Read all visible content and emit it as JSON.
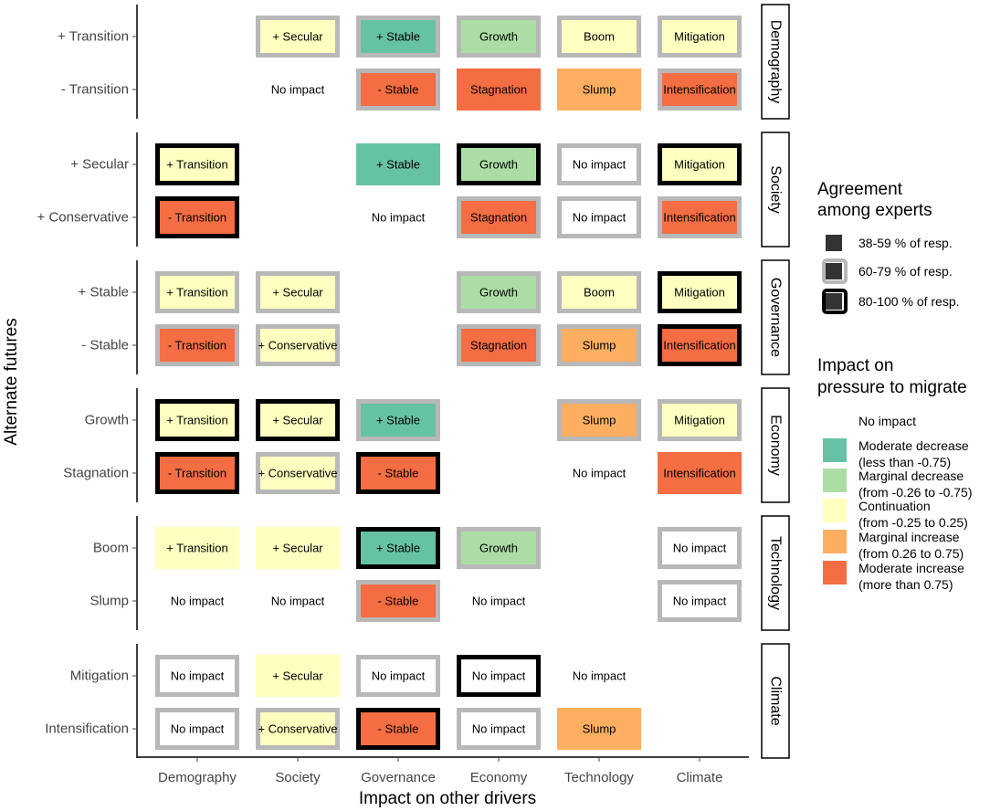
{
  "chart_data": {
    "type": "heatmap",
    "xlabel": "Impact on other drivers",
    "ylabel": "Alternate futures",
    "columns": [
      "Demography",
      "Society",
      "Governance",
      "Economy",
      "Technology",
      "Climate"
    ],
    "panels": [
      {
        "name": "Demography",
        "rows": [
          "+ Transition",
          "- Transition"
        ],
        "cells": [
          [
            null,
            {
              "text": "+ Secular",
              "impact": "continuation",
              "agreement": "60-79"
            },
            {
              "text": "+ Stable",
              "impact": "moderate_decrease",
              "agreement": "60-79"
            },
            {
              "text": "Growth",
              "impact": "marginal_decrease",
              "agreement": "60-79"
            },
            {
              "text": "Boom",
              "impact": "continuation",
              "agreement": "60-79"
            },
            {
              "text": "Mitigation",
              "impact": "continuation",
              "agreement": "60-79"
            }
          ],
          [
            null,
            {
              "text": "No impact",
              "impact": "no_impact",
              "agreement": "38-59"
            },
            {
              "text": "- Stable",
              "impact": "moderate_increase",
              "agreement": "60-79"
            },
            {
              "text": "Stagnation",
              "impact": "moderate_increase",
              "agreement": "38-59"
            },
            {
              "text": "Slump",
              "impact": "marginal_increase",
              "agreement": "38-59"
            },
            {
              "text": "Intensification",
              "impact": "moderate_increase",
              "agreement": "60-79"
            }
          ]
        ]
      },
      {
        "name": "Society",
        "rows": [
          "+ Secular",
          "+ Conservative"
        ],
        "cells": [
          [
            {
              "text": "+ Transition",
              "impact": "continuation",
              "agreement": "80-100"
            },
            null,
            {
              "text": "+ Stable",
              "impact": "moderate_decrease",
              "agreement": "38-59"
            },
            {
              "text": "Growth",
              "impact": "marginal_decrease",
              "agreement": "80-100"
            },
            {
              "text": "No impact",
              "impact": "no_impact",
              "agreement": "60-79"
            },
            {
              "text": "Mitigation",
              "impact": "continuation",
              "agreement": "80-100"
            }
          ],
          [
            {
              "text": "- Transition",
              "impact": "moderate_increase",
              "agreement": "80-100"
            },
            null,
            {
              "text": "No impact",
              "impact": "no_impact",
              "agreement": "38-59"
            },
            {
              "text": "Stagnation",
              "impact": "moderate_increase",
              "agreement": "60-79"
            },
            {
              "text": "No impact",
              "impact": "no_impact",
              "agreement": "60-79"
            },
            {
              "text": "Intensification",
              "impact": "moderate_increase",
              "agreement": "60-79"
            }
          ]
        ]
      },
      {
        "name": "Governance",
        "rows": [
          "+ Stable",
          "- Stable"
        ],
        "cells": [
          [
            {
              "text": "+ Transition",
              "impact": "continuation",
              "agreement": "60-79"
            },
            {
              "text": "+ Secular",
              "impact": "continuation",
              "agreement": "60-79"
            },
            null,
            {
              "text": "Growth",
              "impact": "marginal_decrease",
              "agreement": "60-79"
            },
            {
              "text": "Boom",
              "impact": "continuation",
              "agreement": "60-79"
            },
            {
              "text": "Mitigation",
              "impact": "continuation",
              "agreement": "80-100"
            }
          ],
          [
            {
              "text": "- Transition",
              "impact": "moderate_increase",
              "agreement": "60-79"
            },
            {
              "text": "+ Conservative",
              "impact": "continuation",
              "agreement": "60-79"
            },
            null,
            {
              "text": "Stagnation",
              "impact": "moderate_increase",
              "agreement": "60-79"
            },
            {
              "text": "Slump",
              "impact": "marginal_increase",
              "agreement": "60-79"
            },
            {
              "text": "Intensification",
              "impact": "moderate_increase",
              "agreement": "80-100"
            }
          ]
        ]
      },
      {
        "name": "Economy",
        "rows": [
          "Growth",
          "Stagnation"
        ],
        "cells": [
          [
            {
              "text": "+ Transition",
              "impact": "continuation",
              "agreement": "80-100"
            },
            {
              "text": "+ Secular",
              "impact": "continuation",
              "agreement": "80-100"
            },
            {
              "text": "+ Stable",
              "impact": "moderate_decrease",
              "agreement": "60-79"
            },
            null,
            {
              "text": "Slump",
              "impact": "marginal_increase",
              "agreement": "60-79"
            },
            {
              "text": "Mitigation",
              "impact": "continuation",
              "agreement": "60-79"
            }
          ],
          [
            {
              "text": "- Transition",
              "impact": "moderate_increase",
              "agreement": "80-100"
            },
            {
              "text": "+ Conservative",
              "impact": "continuation",
              "agreement": "60-79"
            },
            {
              "text": "- Stable",
              "impact": "moderate_increase",
              "agreement": "80-100"
            },
            null,
            {
              "text": "No impact",
              "impact": "no_impact",
              "agreement": "38-59"
            },
            {
              "text": "Intensification",
              "impact": "moderate_increase",
              "agreement": "38-59"
            }
          ]
        ]
      },
      {
        "name": "Technology",
        "rows": [
          "Boom",
          "Slump"
        ],
        "cells": [
          [
            {
              "text": "+ Transition",
              "impact": "continuation",
              "agreement": "38-59"
            },
            {
              "text": "+ Secular",
              "impact": "continuation",
              "agreement": "38-59"
            },
            {
              "text": "+ Stable",
              "impact": "moderate_decrease",
              "agreement": "80-100"
            },
            {
              "text": "Growth",
              "impact": "marginal_decrease",
              "agreement": "60-79"
            },
            null,
            {
              "text": "No impact",
              "impact": "no_impact",
              "agreement": "60-79"
            }
          ],
          [
            {
              "text": "No impact",
              "impact": "no_impact",
              "agreement": "38-59"
            },
            {
              "text": "No impact",
              "impact": "no_impact",
              "agreement": "38-59"
            },
            {
              "text": "- Stable",
              "impact": "moderate_increase",
              "agreement": "60-79"
            },
            {
              "text": "No impact",
              "impact": "no_impact",
              "agreement": "38-59"
            },
            null,
            {
              "text": "No impact",
              "impact": "no_impact",
              "agreement": "60-79"
            }
          ]
        ]
      },
      {
        "name": "Climate",
        "rows": [
          "Mitigation",
          "Intensification"
        ],
        "cells": [
          [
            {
              "text": "No impact",
              "impact": "no_impact",
              "agreement": "60-79"
            },
            {
              "text": "+ Secular",
              "impact": "continuation",
              "agreement": "38-59"
            },
            {
              "text": "No impact",
              "impact": "no_impact",
              "agreement": "60-79"
            },
            {
              "text": "No impact",
              "impact": "no_impact",
              "agreement": "80-100"
            },
            {
              "text": "No impact",
              "impact": "no_impact",
              "agreement": "38-59"
            },
            null
          ],
          [
            {
              "text": "No impact",
              "impact": "no_impact",
              "agreement": "60-79"
            },
            {
              "text": "+ Conservative",
              "impact": "continuation",
              "agreement": "60-79"
            },
            {
              "text": "- Stable",
              "impact": "moderate_increase",
              "agreement": "80-100"
            },
            {
              "text": "No impact",
              "impact": "no_impact",
              "agreement": "60-79"
            },
            {
              "text": "Slump",
              "impact": "marginal_increase",
              "agreement": "38-59"
            },
            null
          ]
        ]
      }
    ],
    "legend_agreement": {
      "title": [
        "Agreement",
        "among experts"
      ],
      "items": [
        {
          "key": "38-59",
          "label": "38-59 % of resp."
        },
        {
          "key": "60-79",
          "label": "60-79 % of resp."
        },
        {
          "key": "80-100",
          "label": "80-100 % of resp."
        }
      ]
    },
    "legend_impact": {
      "title": [
        "Impact on",
        "pressure to migrate"
      ],
      "items": [
        {
          "key": "no_impact",
          "label": [
            "No impact"
          ]
        },
        {
          "key": "moderate_decrease",
          "label": [
            "Moderate decrease",
            "(less than -0.75)"
          ]
        },
        {
          "key": "marginal_decrease",
          "label": [
            "Marginal decrease",
            "(from -0.26 to -0.75)"
          ]
        },
        {
          "key": "continuation",
          "label": [
            "Continuation",
            "(from -0.25 to 0.25)"
          ]
        },
        {
          "key": "marginal_increase",
          "label": [
            "Marginal increase",
            "(from 0.26 to 0.75)"
          ]
        },
        {
          "key": "moderate_increase",
          "label": [
            "Moderate increase",
            "(more than 0.75)"
          ]
        }
      ]
    },
    "colors": {
      "no_impact": "#ffffff",
      "moderate_decrease": "#66c2a5",
      "marginal_decrease": "#abdda4",
      "continuation": "#ffffbf",
      "marginal_increase": "#fdae61",
      "moderate_increase": "#f46d43",
      "border_60_79": "#b8b8b8",
      "border_80_100": "#000000"
    }
  }
}
